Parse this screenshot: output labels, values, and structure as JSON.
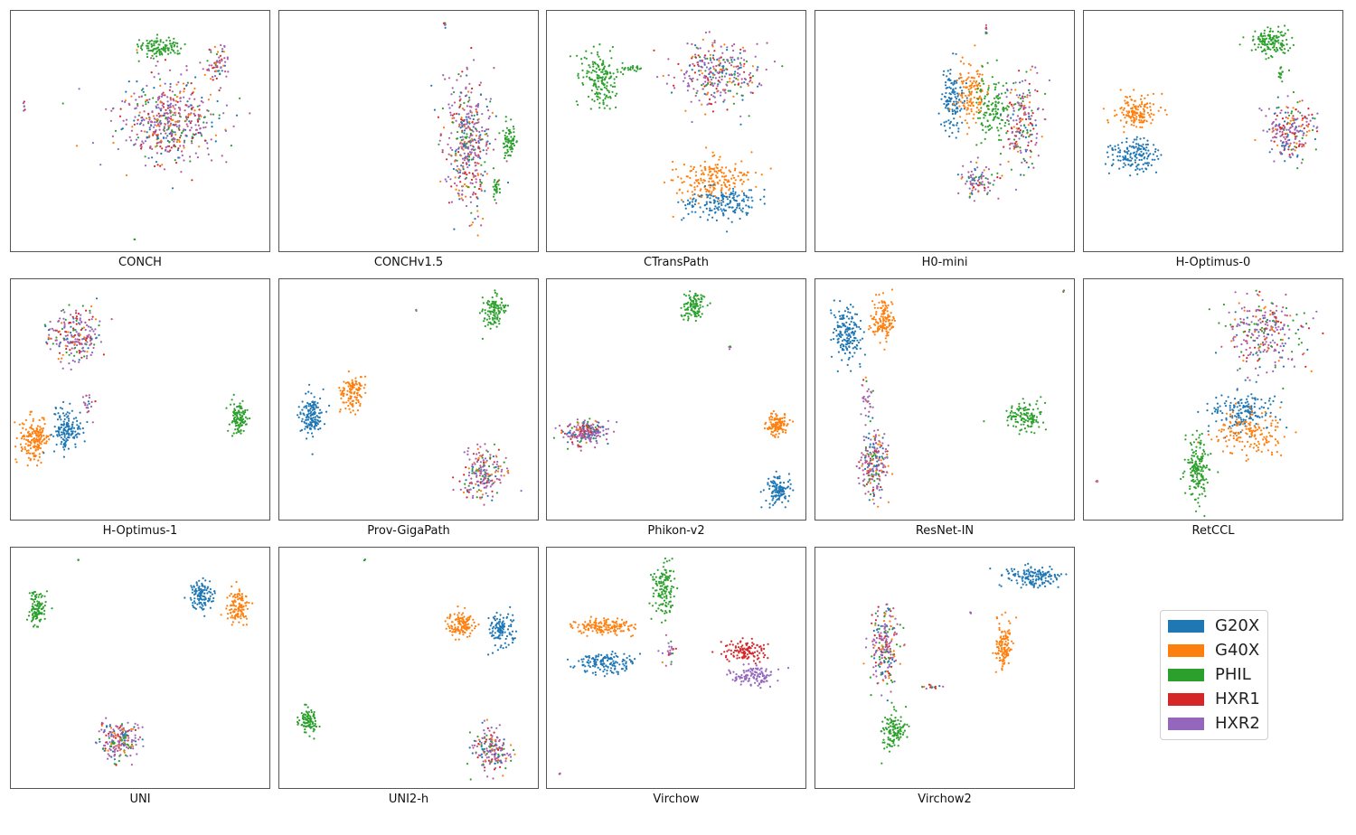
{
  "figure": {
    "legend": {
      "placement": "bottom-right"
    }
  },
  "colors": {
    "G20X": "#1f77b4",
    "G40X": "#ff7f0e",
    "PHIL": "#2ca02c",
    "HXR1": "#d62728",
    "HXR2": "#9467bd",
    "mixed": "#b5589a"
  },
  "chart_data": {
    "type": "scatter",
    "grid": false,
    "axes_visible": false,
    "legend": {
      "placement": "bottom-right",
      "entries": [
        {
          "label": "G20X",
          "color": "#1f77b4"
        },
        {
          "label": "G40X",
          "color": "#ff7f0e"
        },
        {
          "label": "PHIL",
          "color": "#2ca02c"
        },
        {
          "label": "HXR1",
          "color": "#d62728"
        },
        {
          "label": "HXR2",
          "color": "#9467bd"
        }
      ]
    },
    "panels": [
      {
        "title": "CONCH",
        "clusters": [
          {
            "class": "PHIL",
            "center": [
              0.58,
              0.15
            ],
            "spread": [
              0.08,
              0.035
            ],
            "n": 110
          },
          {
            "class": "mixed",
            "center": [
              0.6,
              0.46
            ],
            "spread": [
              0.18,
              0.16
            ],
            "n": 520
          },
          {
            "class": "mixed",
            "center": [
              0.8,
              0.22
            ],
            "spread": [
              0.04,
              0.07
            ],
            "n": 60
          },
          {
            "class": "mixed",
            "center": [
              0.05,
              0.4
            ],
            "spread": [
              0.004,
              0.02
            ],
            "n": 6
          },
          {
            "class": "PHIL",
            "center": [
              0.48,
              0.95
            ],
            "spread": [
              0.004,
              0.004
            ],
            "n": 3
          }
        ]
      },
      {
        "title": "CONCHv1.5",
        "clusters": [
          {
            "class": "mixed",
            "center": [
              0.73,
              0.55
            ],
            "spread": [
              0.08,
              0.24
            ],
            "n": 420
          },
          {
            "class": "PHIL",
            "center": [
              0.89,
              0.54
            ],
            "spread": [
              0.02,
              0.06
            ],
            "n": 70
          },
          {
            "class": "PHIL",
            "center": [
              0.84,
              0.74
            ],
            "spread": [
              0.015,
              0.04
            ],
            "n": 25
          },
          {
            "class": "mixed",
            "center": [
              0.64,
              0.06
            ],
            "spread": [
              0.004,
              0.02
            ],
            "n": 6
          }
        ]
      },
      {
        "title": "CTransPath",
        "clusters": [
          {
            "class": "PHIL",
            "center": [
              0.2,
              0.28
            ],
            "spread": [
              0.06,
              0.11
            ],
            "n": 170
          },
          {
            "class": "mixed",
            "center": [
              0.66,
              0.26
            ],
            "spread": [
              0.16,
              0.13
            ],
            "n": 320
          },
          {
            "class": "G40X",
            "center": [
              0.63,
              0.7
            ],
            "spread": [
              0.13,
              0.08
            ],
            "n": 190
          },
          {
            "class": "G20X",
            "center": [
              0.67,
              0.8
            ],
            "spread": [
              0.13,
              0.06
            ],
            "n": 170
          },
          {
            "class": "PHIL",
            "center": [
              0.34,
              0.24
            ],
            "spread": [
              0.04,
              0.01
            ],
            "n": 20
          }
        ]
      },
      {
        "title": "H0-mini",
        "clusters": [
          {
            "class": "G20X",
            "center": [
              0.53,
              0.38
            ],
            "spread": [
              0.04,
              0.12
            ],
            "n": 130
          },
          {
            "class": "G40X",
            "center": [
              0.6,
              0.35
            ],
            "spread": [
              0.05,
              0.12
            ],
            "n": 130
          },
          {
            "class": "PHIL",
            "center": [
              0.69,
              0.4
            ],
            "spread": [
              0.06,
              0.13
            ],
            "n": 130
          },
          {
            "class": "mixed",
            "center": [
              0.8,
              0.46
            ],
            "spread": [
              0.06,
              0.18
            ],
            "n": 200
          },
          {
            "class": "mixed",
            "center": [
              0.63,
              0.7
            ],
            "spread": [
              0.06,
              0.07
            ],
            "n": 90
          },
          {
            "class": "mixed",
            "center": [
              0.66,
              0.08
            ],
            "spread": [
              0.004,
              0.02
            ],
            "n": 8
          }
        ]
      },
      {
        "title": "H-Optimus-0",
        "clusters": [
          {
            "class": "PHIL",
            "center": [
              0.72,
              0.13
            ],
            "spread": [
              0.07,
              0.05
            ],
            "n": 140
          },
          {
            "class": "G40X",
            "center": [
              0.2,
              0.42
            ],
            "spread": [
              0.08,
              0.06
            ],
            "n": 150
          },
          {
            "class": "G20X",
            "center": [
              0.19,
              0.6
            ],
            "spread": [
              0.08,
              0.06
            ],
            "n": 150
          },
          {
            "class": "mixed",
            "center": [
              0.8,
              0.5
            ],
            "spread": [
              0.1,
              0.1
            ],
            "n": 220
          },
          {
            "class": "PHIL",
            "center": [
              0.76,
              0.26
            ],
            "spread": [
              0.01,
              0.03
            ],
            "n": 15
          }
        ]
      },
      {
        "title": "H-Optimus-1",
        "clusters": [
          {
            "class": "mixed",
            "center": [
              0.24,
              0.24
            ],
            "spread": [
              0.09,
              0.1
            ],
            "n": 220
          },
          {
            "class": "G40X",
            "center": [
              0.09,
              0.67
            ],
            "spread": [
              0.05,
              0.09
            ],
            "n": 170
          },
          {
            "class": "G20X",
            "center": [
              0.22,
              0.63
            ],
            "spread": [
              0.05,
              0.08
            ],
            "n": 150
          },
          {
            "class": "PHIL",
            "center": [
              0.88,
              0.58
            ],
            "spread": [
              0.03,
              0.06
            ],
            "n": 110
          },
          {
            "class": "mixed",
            "center": [
              0.3,
              0.52
            ],
            "spread": [
              0.02,
              0.05
            ],
            "n": 20
          }
        ]
      },
      {
        "title": "Prov-GigaPath",
        "clusters": [
          {
            "class": "PHIL",
            "center": [
              0.83,
              0.13
            ],
            "spread": [
              0.04,
              0.06
            ],
            "n": 110
          },
          {
            "class": "G20X",
            "center": [
              0.12,
              0.57
            ],
            "spread": [
              0.04,
              0.08
            ],
            "n": 150
          },
          {
            "class": "G40X",
            "center": [
              0.28,
              0.47
            ],
            "spread": [
              0.04,
              0.07
            ],
            "n": 120
          },
          {
            "class": "mixed",
            "center": [
              0.79,
              0.81
            ],
            "spread": [
              0.07,
              0.1
            ],
            "n": 200
          },
          {
            "class": "mixed",
            "center": [
              0.53,
              0.13
            ],
            "spread": [
              0.003,
              0.003
            ],
            "n": 3
          }
        ]
      },
      {
        "title": "Phikon-v2",
        "clusters": [
          {
            "class": "PHIL",
            "center": [
              0.57,
              0.11
            ],
            "spread": [
              0.04,
              0.05
            ],
            "n": 110
          },
          {
            "class": "mixed",
            "center": [
              0.15,
              0.64
            ],
            "spread": [
              0.08,
              0.04
            ],
            "n": 220
          },
          {
            "class": "G40X",
            "center": [
              0.89,
              0.6
            ],
            "spread": [
              0.04,
              0.04
            ],
            "n": 120
          },
          {
            "class": "G20X",
            "center": [
              0.89,
              0.88
            ],
            "spread": [
              0.04,
              0.05
            ],
            "n": 120
          },
          {
            "class": "mixed",
            "center": [
              0.71,
              0.28
            ],
            "spread": [
              0.004,
              0.01
            ],
            "n": 4
          }
        ]
      },
      {
        "title": "ResNet-IN",
        "clusters": [
          {
            "class": "G20X",
            "center": [
              0.12,
              0.23
            ],
            "spread": [
              0.05,
              0.1
            ],
            "n": 170
          },
          {
            "class": "G40X",
            "center": [
              0.26,
              0.17
            ],
            "spread": [
              0.04,
              0.09
            ],
            "n": 140
          },
          {
            "class": "mixed",
            "center": [
              0.23,
              0.77
            ],
            "spread": [
              0.05,
              0.12
            ],
            "n": 220
          },
          {
            "class": "PHIL",
            "center": [
              0.81,
              0.57
            ],
            "spread": [
              0.06,
              0.05
            ],
            "n": 120
          },
          {
            "class": "mixed",
            "center": [
              0.2,
              0.5
            ],
            "spread": [
              0.02,
              0.08
            ],
            "n": 30
          },
          {
            "class": "mixed",
            "center": [
              0.96,
              0.05
            ],
            "spread": [
              0.003,
              0.003
            ],
            "n": 3
          }
        ]
      },
      {
        "title": "RetCCL",
        "clusters": [
          {
            "class": "mixed",
            "center": [
              0.7,
              0.22
            ],
            "spread": [
              0.13,
              0.15
            ],
            "n": 280
          },
          {
            "class": "G20X",
            "center": [
              0.62,
              0.55
            ],
            "spread": [
              0.12,
              0.07
            ],
            "n": 160
          },
          {
            "class": "G40X",
            "center": [
              0.64,
              0.64
            ],
            "spread": [
              0.12,
              0.08
            ],
            "n": 160
          },
          {
            "class": "PHIL",
            "center": [
              0.44,
              0.78
            ],
            "spread": [
              0.04,
              0.12
            ],
            "n": 170
          },
          {
            "class": "mixed",
            "center": [
              0.05,
              0.84
            ],
            "spread": [
              0.005,
              0.005
            ],
            "n": 4
          }
        ]
      },
      {
        "title": "UNI",
        "clusters": [
          {
            "class": "PHIL",
            "center": [
              0.1,
              0.25
            ],
            "spread": [
              0.03,
              0.06
            ],
            "n": 110
          },
          {
            "class": "G20X",
            "center": [
              0.74,
              0.2
            ],
            "spread": [
              0.04,
              0.06
            ],
            "n": 120
          },
          {
            "class": "G40X",
            "center": [
              0.88,
              0.24
            ],
            "spread": [
              0.04,
              0.06
            ],
            "n": 120
          },
          {
            "class": "mixed",
            "center": [
              0.42,
              0.8
            ],
            "spread": [
              0.07,
              0.07
            ],
            "n": 200
          },
          {
            "class": "PHIL",
            "center": [
              0.26,
              0.05
            ],
            "spread": [
              0.003,
              0.003
            ],
            "n": 3
          }
        ]
      },
      {
        "title": "UNI2-h",
        "clusters": [
          {
            "class": "G40X",
            "center": [
              0.7,
              0.32
            ],
            "spread": [
              0.05,
              0.05
            ],
            "n": 120
          },
          {
            "class": "G20X",
            "center": [
              0.86,
              0.34
            ],
            "spread": [
              0.04,
              0.06
            ],
            "n": 120
          },
          {
            "class": "PHIL",
            "center": [
              0.11,
              0.72
            ],
            "spread": [
              0.03,
              0.05
            ],
            "n": 100
          },
          {
            "class": "mixed",
            "center": [
              0.82,
              0.84
            ],
            "spread": [
              0.07,
              0.08
            ],
            "n": 180
          },
          {
            "class": "PHIL",
            "center": [
              0.33,
              0.05
            ],
            "spread": [
              0.003,
              0.003
            ],
            "n": 3
          }
        ]
      },
      {
        "title": "Virchow",
        "clusters": [
          {
            "class": "PHIL",
            "center": [
              0.45,
              0.17
            ],
            "spread": [
              0.04,
              0.1
            ],
            "n": 130
          },
          {
            "class": "G40X",
            "center": [
              0.22,
              0.33
            ],
            "spread": [
              0.1,
              0.03
            ],
            "n": 150
          },
          {
            "class": "G20X",
            "center": [
              0.23,
              0.48
            ],
            "spread": [
              0.1,
              0.04
            ],
            "n": 150
          },
          {
            "class": "HXR1",
            "center": [
              0.77,
              0.43
            ],
            "spread": [
              0.08,
              0.04
            ],
            "n": 120
          },
          {
            "class": "HXR2",
            "center": [
              0.8,
              0.53
            ],
            "spread": [
              0.08,
              0.04
            ],
            "n": 120
          },
          {
            "class": "mixed",
            "center": [
              0.47,
              0.43
            ],
            "spread": [
              0.03,
              0.04
            ],
            "n": 25
          },
          {
            "class": "mixed",
            "center": [
              0.05,
              0.94
            ],
            "spread": [
              0.003,
              0.003
            ],
            "n": 3
          }
        ]
      },
      {
        "title": "Virchow2",
        "clusters": [
          {
            "class": "G20X",
            "center": [
              0.84,
              0.12
            ],
            "spread": [
              0.09,
              0.04
            ],
            "n": 150
          },
          {
            "class": "G40X",
            "center": [
              0.73,
              0.41
            ],
            "spread": [
              0.03,
              0.1
            ],
            "n": 120
          },
          {
            "class": "mixed",
            "center": [
              0.27,
              0.41
            ],
            "spread": [
              0.05,
              0.15
            ],
            "n": 220
          },
          {
            "class": "PHIL",
            "center": [
              0.3,
              0.76
            ],
            "spread": [
              0.04,
              0.07
            ],
            "n": 120
          },
          {
            "class": "mixed",
            "center": [
              0.45,
              0.58
            ],
            "spread": [
              0.04,
              0.01
            ],
            "n": 15
          },
          {
            "class": "mixed",
            "center": [
              0.6,
              0.27
            ],
            "spread": [
              0.003,
              0.01
            ],
            "n": 4
          }
        ]
      }
    ]
  }
}
